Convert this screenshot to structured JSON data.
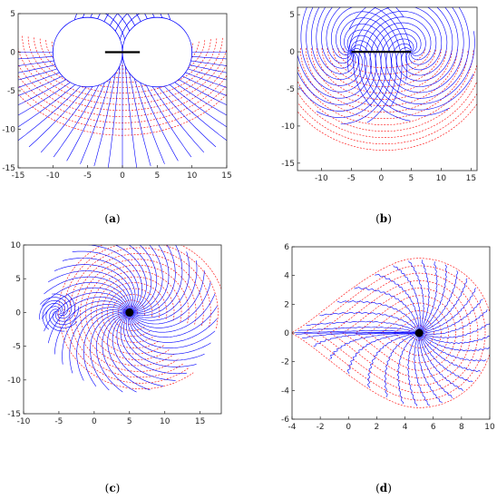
{
  "chart_data": [
    {
      "type": "line",
      "panel": "a",
      "caption_letter": "a",
      "xlim": [
        -15,
        15
      ],
      "ylim": [
        -15,
        5
      ],
      "xticks": [
        -15,
        -10,
        -5,
        0,
        5,
        10,
        15
      ],
      "yticks": [
        5,
        0,
        -5,
        -10,
        -15
      ],
      "segment": [
        [
          -2.5,
          0
        ],
        [
          2.5,
          0
        ]
      ],
      "circles": [
        {
          "center": [
            -5,
            0
          ],
          "radius": 5
        },
        {
          "center": [
            5,
            0
          ],
          "radius": 5
        }
      ],
      "series": [
        {
          "color": "#0000ff",
          "style": "solid"
        },
        {
          "color": "#ff0000",
          "style": "dashed"
        }
      ]
    },
    {
      "type": "line",
      "panel": "b",
      "caption_letter": "b",
      "xlim": [
        -14,
        16
      ],
      "ylim": [
        -16,
        6
      ],
      "xticks": [
        -10,
        -5,
        0,
        5,
        10,
        15
      ],
      "yticks": [
        5,
        0,
        -5,
        -10,
        -15
      ],
      "segment": [
        [
          -5,
          0
        ],
        [
          5,
          0
        ]
      ],
      "focus_points": [
        [
          -5,
          0
        ],
        [
          5,
          0
        ]
      ],
      "series": [
        {
          "color": "#0000ff",
          "style": "solid"
        },
        {
          "color": "#ff0000",
          "style": "dashed"
        }
      ]
    },
    {
      "type": "line",
      "panel": "c",
      "caption_letter": "c",
      "xlim": [
        -10,
        18
      ],
      "ylim": [
        -15,
        10
      ],
      "xticks": [
        -10,
        -5,
        0,
        5,
        10,
        15
      ],
      "yticks": [
        10,
        5,
        0,
        -5,
        -10,
        -15
      ],
      "focus_points": [
        [
          -5,
          0
        ],
        [
          5,
          0
        ]
      ],
      "series": [
        {
          "color": "#0000ff",
          "style": "solid"
        },
        {
          "color": "#ff0000",
          "style": "dashed"
        }
      ]
    },
    {
      "type": "line",
      "panel": "d",
      "caption_letter": "d",
      "xlim": [
        -4,
        10
      ],
      "ylim": [
        -6,
        6
      ],
      "xticks": [
        -4,
        -2,
        0,
        2,
        4,
        6,
        8,
        10
      ],
      "yticks": [
        6,
        4,
        2,
        0,
        -2,
        -4,
        -6
      ],
      "focus_points": [
        [
          5,
          0
        ]
      ],
      "boundary_vertex": [
        -4,
        0
      ],
      "series": [
        {
          "color": "#0000ff",
          "style": "solid"
        },
        {
          "color": "#ff0000",
          "style": "dashed"
        }
      ]
    }
  ]
}
